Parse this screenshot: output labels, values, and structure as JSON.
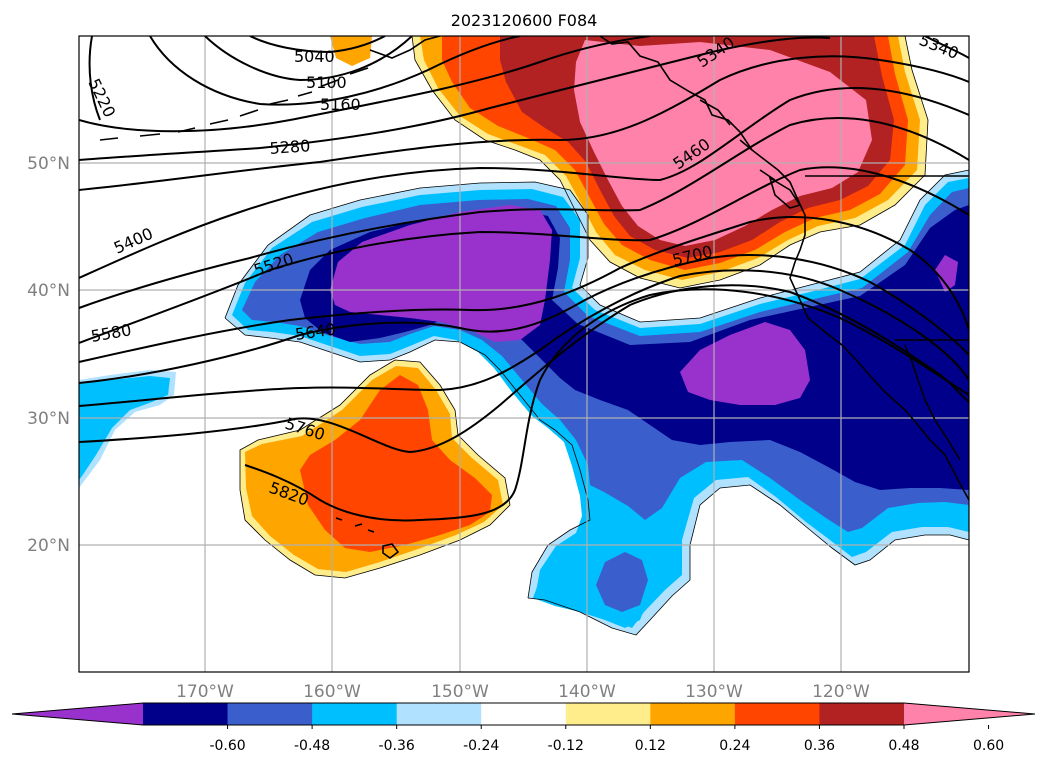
{
  "title": "2023120600 F084",
  "lat_labels": [
    "50°N",
    "40°N",
    "30°N",
    "20°N"
  ],
  "lon_labels": [
    "170°W",
    "160°W",
    "150°W",
    "140°W",
    "130°W",
    "120°W"
  ],
  "contour_labels": [
    "5040",
    "5100",
    "5160",
    "5220",
    "5280",
    "5340",
    "5340",
    "5400",
    "5460",
    "5520",
    "5580",
    "5640",
    "5700",
    "5760",
    "5820"
  ],
  "colorbar": {
    "ticks": [
      "-0.60",
      "-0.48",
      "-0.36",
      "-0.24",
      "-0.12",
      "0.12",
      "0.24",
      "0.36",
      "0.48",
      "0.60"
    ],
    "colors": [
      "#9932cc",
      "#00008b",
      "#3a5fcd",
      "#00bfff",
      "#b0e2ff",
      "#ffffff",
      "#ffec8b",
      "#ffa500",
      "#ff4500",
      "#b22222",
      "#ff82ab"
    ]
  }
}
